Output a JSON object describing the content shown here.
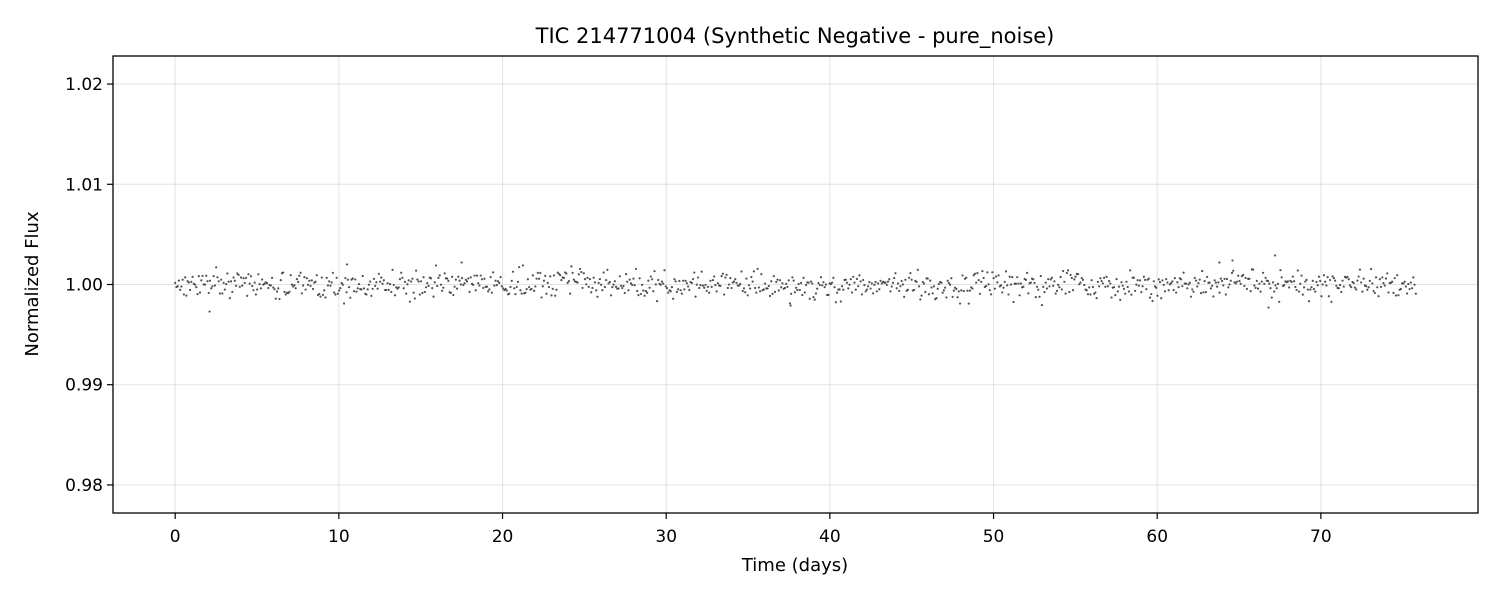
{
  "chart_data": {
    "type": "scatter",
    "title": "TIC 214771004 (Synthetic Negative - pure_noise)",
    "xlabel": "Time (days)",
    "ylabel": "Normalized Flux",
    "xlim": [
      -3.8,
      79.6
    ],
    "ylim": [
      0.9772,
      1.0228
    ],
    "x_ticks": [
      0,
      10,
      20,
      30,
      40,
      50,
      60,
      70
    ],
    "y_ticks": [
      0.98,
      0.99,
      1.0,
      1.01,
      1.02
    ],
    "x_tick_labels": [
      "0",
      "10",
      "20",
      "30",
      "40",
      "50",
      "60",
      "70"
    ],
    "y_tick_labels": [
      "0.98",
      "0.99",
      "1.00",
      "1.01",
      "1.02"
    ],
    "grid": true,
    "legend": "none",
    "marker_color": "#333333",
    "series": [
      {
        "time_start": 0.0,
        "time_end": 75.8,
        "n_points": 1000,
        "flux_center": 1.0,
        "flux_noise_std": 0.0007,
        "notable_points": [
          {
            "x": 2.1,
            "y": 0.9973
          },
          {
            "x": 10.5,
            "y": 1.002
          },
          {
            "x": 17.5,
            "y": 1.0022
          },
          {
            "x": 37.6,
            "y": 0.9979
          },
          {
            "x": 63.8,
            "y": 1.0022
          },
          {
            "x": 64.6,
            "y": 1.0024
          },
          {
            "x": 67.2,
            "y": 1.0029
          },
          {
            "x": 66.8,
            "y": 0.9977
          }
        ]
      }
    ]
  }
}
